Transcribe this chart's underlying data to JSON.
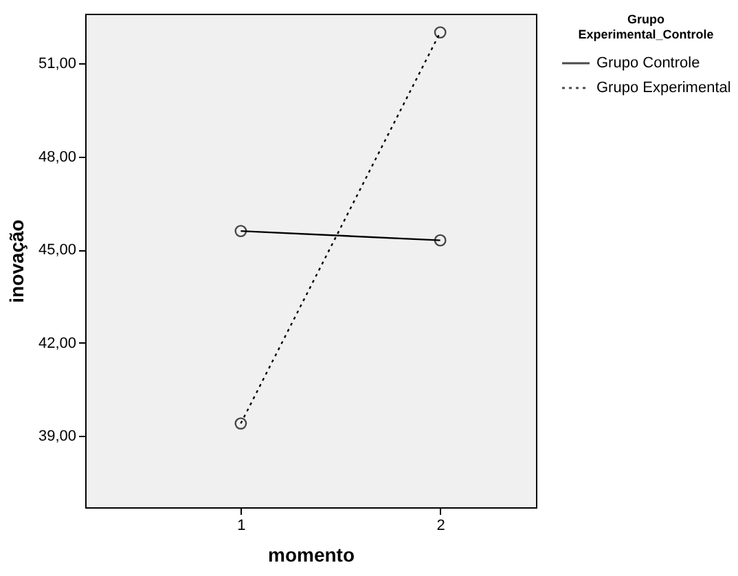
{
  "chart_data": {
    "type": "line",
    "xlabel": "momento",
    "ylabel": "inovação",
    "legend_title": "Grupo Experimental_Controle",
    "x": [
      1,
      2
    ],
    "xlim": [
      0.22,
      2.48
    ],
    "xticks": [
      1,
      2
    ],
    "ylim": [
      36.7,
      52.6
    ],
    "yticks": [
      {
        "value": 39,
        "label": "39,00"
      },
      {
        "value": 42,
        "label": "42,00"
      },
      {
        "value": 45,
        "label": "45,00"
      },
      {
        "value": 48,
        "label": "48,00"
      },
      {
        "value": 51,
        "label": "51,00"
      }
    ],
    "series": [
      {
        "name": "Grupo Controle",
        "color": "#000000",
        "values": [
          45.6,
          45.3
        ],
        "line_style": "solid"
      },
      {
        "name": "Grupo Experimental",
        "color": "#000000",
        "values": [
          39.4,
          52.0
        ],
        "line_style": "dotted"
      }
    ],
    "marker": "circle",
    "grid": false,
    "legend": "top right"
  }
}
